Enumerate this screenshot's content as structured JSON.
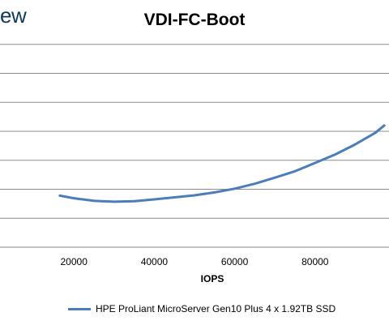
{
  "brand_text": "ew",
  "chart_data": {
    "type": "line",
    "title": "VDI-FC-Boot",
    "xlabel": "IOPS",
    "ylabel": "",
    "x_ticks": [
      20000,
      40000,
      60000,
      80000
    ],
    "xlim": [
      0,
      100000
    ],
    "ylim": [
      0,
      8
    ],
    "y_gridlines": [
      0,
      1,
      2,
      3,
      4,
      5,
      6,
      7,
      8
    ],
    "grid": true,
    "legend_position": "bottom",
    "series": [
      {
        "name": "HPE ProLiant MicroServer Gen10 Plus 4 x 1.92TB SSD",
        "color": "#4a7ebb",
        "x": [
          16500,
          20000,
          25000,
          30000,
          35000,
          40000,
          45000,
          50000,
          55000,
          60000,
          65000,
          70000,
          75000,
          80000,
          85000,
          90000,
          95000,
          97200
        ],
        "y": [
          1.78,
          1.69,
          1.6,
          1.57,
          1.59,
          1.65,
          1.72,
          1.79,
          1.89,
          2.02,
          2.19,
          2.4,
          2.62,
          2.91,
          3.2,
          3.55,
          3.95,
          4.2
        ]
      }
    ]
  }
}
